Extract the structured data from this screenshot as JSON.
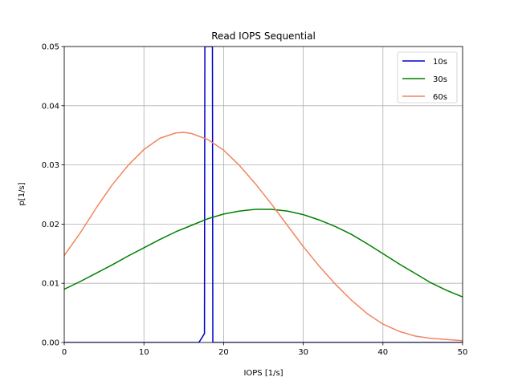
{
  "chart_data": {
    "type": "line",
    "title": "Read IOPS Sequential",
    "xlabel": "IOPS [1/s]",
    "ylabel": "p[1/s]",
    "xlim": [
      0,
      50
    ],
    "ylim": [
      0,
      0.05
    ],
    "xticks": [
      0,
      10,
      20,
      30,
      40,
      50
    ],
    "xtick_labels": [
      "0",
      "10",
      "20",
      "30",
      "40",
      "50"
    ],
    "yticks": [
      0,
      0.01,
      0.02,
      0.03,
      0.04,
      0.05
    ],
    "ytick_labels": [
      "0.00",
      "0.01",
      "0.02",
      "0.03",
      "0.04",
      "0.05"
    ],
    "grid": true,
    "legend_position": "top-right",
    "series": [
      {
        "name": "10s",
        "color": "#0000cc",
        "x": [
          0,
          16.9,
          17.6,
          17.65,
          17.7,
          18.6,
          18.65,
          50
        ],
        "y": [
          0,
          0,
          0.0015,
          0.05,
          0.05,
          0.05,
          0,
          0
        ]
      },
      {
        "name": "30s",
        "color": "#008000",
        "x": [
          0,
          2,
          4,
          6,
          8,
          10,
          12,
          14,
          16,
          18,
          20,
          22,
          24,
          26,
          28,
          30,
          32,
          34,
          36,
          38,
          40,
          42,
          44,
          46,
          48,
          50
        ],
        "y": [
          0.009,
          0.0103,
          0.0117,
          0.0131,
          0.0146,
          0.016,
          0.0174,
          0.0187,
          0.0198,
          0.0209,
          0.0217,
          0.0222,
          0.0225,
          0.0225,
          0.0222,
          0.0216,
          0.0207,
          0.0196,
          0.0183,
          0.0167,
          0.015,
          0.0133,
          0.0117,
          0.0101,
          0.0088,
          0.0077
        ]
      },
      {
        "name": "60s",
        "color": "#f4845f",
        "x": [
          0,
          2,
          4,
          6,
          8,
          10,
          12,
          14,
          15,
          16,
          18,
          20,
          22,
          24,
          26,
          28,
          30,
          32,
          34,
          36,
          38,
          40,
          42,
          44,
          46,
          48,
          50
        ],
        "y": [
          0.0147,
          0.0185,
          0.0227,
          0.0266,
          0.0299,
          0.0326,
          0.0345,
          0.0354,
          0.0355,
          0.0353,
          0.0343,
          0.0325,
          0.0299,
          0.0268,
          0.0234,
          0.0198,
          0.0162,
          0.0129,
          0.0099,
          0.0072,
          0.0049,
          0.0031,
          0.0019,
          0.0011,
          0.0007,
          0.0005,
          0.0003
        ]
      }
    ]
  }
}
